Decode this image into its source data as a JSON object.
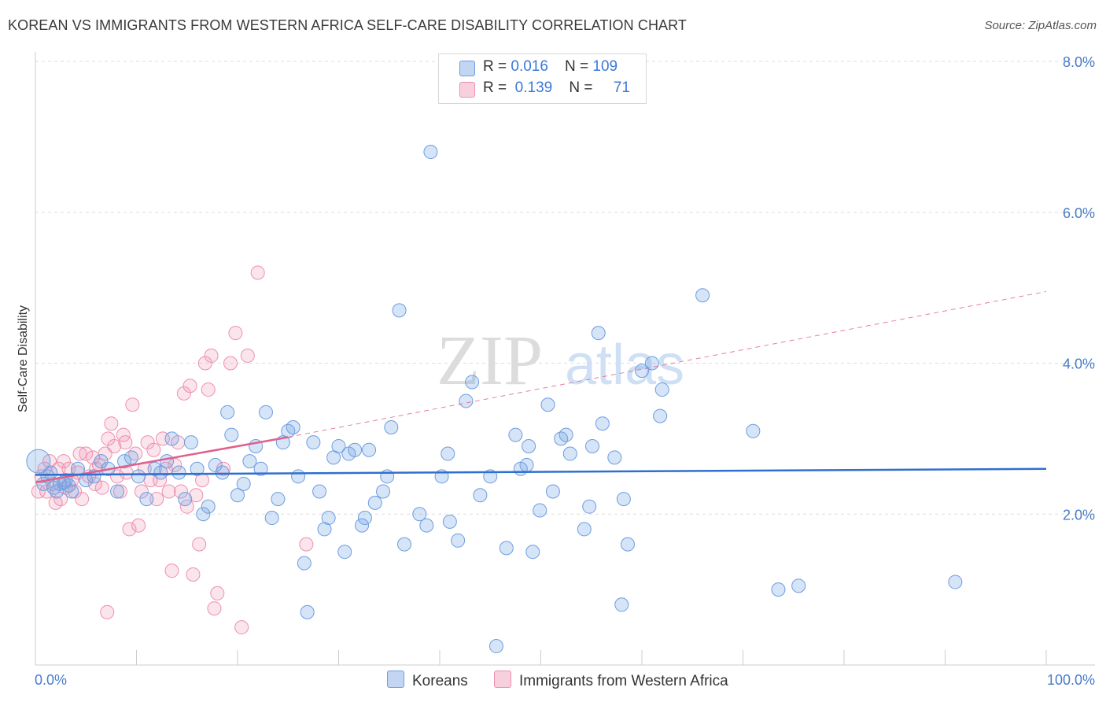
{
  "title": "KOREAN VS IMMIGRANTS FROM WESTERN AFRICA SELF-CARE DISABILITY CORRELATION CHART",
  "source": "Source: ZipAtlas.com",
  "watermark": {
    "zip": "ZIP",
    "atlas": "atlas"
  },
  "colors": {
    "koreans_fill": "rgba(120,165,230,0.30)",
    "koreans_stroke": "#6d9de0",
    "koreans_line": "#2f6fcf",
    "wa_fill": "rgba(240,150,180,0.25)",
    "wa_stroke": "#ee8fb0",
    "wa_line": "#e0608e",
    "tick_text": "#4a7cc7",
    "grid": "#dddddd"
  },
  "legend": {
    "rows": [
      {
        "r_label": "R = ",
        "r_value": "0.016",
        "n_label": "N = ",
        "n_value": "109"
      },
      {
        "r_label": "R = ",
        "r_value": "0.139",
        "n_label": "N = ",
        "n_value": "71"
      }
    ]
  },
  "chart_data": {
    "type": "scatter",
    "ylabel": "Self-Care Disability",
    "xlabel": "",
    "xlim": [
      0,
      100
    ],
    "ylim": [
      0,
      8.0
    ],
    "x_tick_labels": [
      "0.0%",
      "100.0%"
    ],
    "y_ticks": [
      2.0,
      4.0,
      6.0,
      8.0
    ],
    "y_tick_labels": [
      "2.0%",
      "4.0%",
      "6.0%",
      "8.0%"
    ],
    "grid": "horizontal dashed",
    "legend_position": "top-center",
    "series": [
      {
        "name": "Koreans",
        "r": 0.016,
        "n": 109,
        "trend": {
          "x": [
            0,
            100
          ],
          "y": [
            2.52,
            2.6
          ]
        },
        "points": [
          [
            0.3,
            2.7
          ],
          [
            0.8,
            2.4
          ],
          [
            1.2,
            2.5
          ],
          [
            1.8,
            2.35
          ],
          [
            2.4,
            2.4
          ],
          [
            3.0,
            2.45
          ],
          [
            3.6,
            2.3
          ],
          [
            4.2,
            2.6
          ],
          [
            1.5,
            2.55
          ],
          [
            2.1,
            2.3
          ],
          [
            5.0,
            2.45
          ],
          [
            5.8,
            2.5
          ],
          [
            6.5,
            2.7
          ],
          [
            7.2,
            2.6
          ],
          [
            8.1,
            2.3
          ],
          [
            8.8,
            2.7
          ],
          [
            9.5,
            2.75
          ],
          [
            10.2,
            2.5
          ],
          [
            11.0,
            2.2
          ],
          [
            11.8,
            2.6
          ],
          [
            12.4,
            2.55
          ],
          [
            13.0,
            2.7
          ],
          [
            13.5,
            3.0
          ],
          [
            14.2,
            2.55
          ],
          [
            14.8,
            2.2
          ],
          [
            15.4,
            2.95
          ],
          [
            16.0,
            2.6
          ],
          [
            16.6,
            2.0
          ],
          [
            17.1,
            2.1
          ],
          [
            17.8,
            2.65
          ],
          [
            18.5,
            2.55
          ],
          [
            19.0,
            3.35
          ],
          [
            19.4,
            3.05
          ],
          [
            20.0,
            2.25
          ],
          [
            20.6,
            2.4
          ],
          [
            21.2,
            2.7
          ],
          [
            21.8,
            2.9
          ],
          [
            22.3,
            2.6
          ],
          [
            22.8,
            3.35
          ],
          [
            23.4,
            1.95
          ],
          [
            24.0,
            2.2
          ],
          [
            24.5,
            2.95
          ],
          [
            25.0,
            3.1
          ],
          [
            25.5,
            3.15
          ],
          [
            26.0,
            2.5
          ],
          [
            26.6,
            1.35
          ],
          [
            26.9,
            0.7
          ],
          [
            27.5,
            2.95
          ],
          [
            28.1,
            2.3
          ],
          [
            28.6,
            1.8
          ],
          [
            29.0,
            1.95
          ],
          [
            29.5,
            2.75
          ],
          [
            30.0,
            2.9
          ],
          [
            30.6,
            1.5
          ],
          [
            31.0,
            2.8
          ],
          [
            31.6,
            2.85
          ],
          [
            32.3,
            1.85
          ],
          [
            32.6,
            1.95
          ],
          [
            33.0,
            2.85
          ],
          [
            33.6,
            2.15
          ],
          [
            34.4,
            2.3
          ],
          [
            34.8,
            2.5
          ],
          [
            35.2,
            3.15
          ],
          [
            36.0,
            4.7
          ],
          [
            36.5,
            1.6
          ],
          [
            38.0,
            2.0
          ],
          [
            38.7,
            1.85
          ],
          [
            39.1,
            6.8
          ],
          [
            40.2,
            2.5
          ],
          [
            40.8,
            2.8
          ],
          [
            41.0,
            1.9
          ],
          [
            41.8,
            1.65
          ],
          [
            42.6,
            3.5
          ],
          [
            43.2,
            3.75
          ],
          [
            44.0,
            2.25
          ],
          [
            45.0,
            2.5
          ],
          [
            45.6,
            0.25
          ],
          [
            46.6,
            1.55
          ],
          [
            47.5,
            3.05
          ],
          [
            48.0,
            2.6
          ],
          [
            48.6,
            2.65
          ],
          [
            48.8,
            2.9
          ],
          [
            49.2,
            1.5
          ],
          [
            49.9,
            2.05
          ],
          [
            50.7,
            3.45
          ],
          [
            51.2,
            2.3
          ],
          [
            52.0,
            3.0
          ],
          [
            52.5,
            3.05
          ],
          [
            52.9,
            2.8
          ],
          [
            54.3,
            1.8
          ],
          [
            54.8,
            2.1
          ],
          [
            55.1,
            2.9
          ],
          [
            55.7,
            4.4
          ],
          [
            56.1,
            3.2
          ],
          [
            57.3,
            2.75
          ],
          [
            58.0,
            0.8
          ],
          [
            58.2,
            2.2
          ],
          [
            58.6,
            1.6
          ],
          [
            60.0,
            3.9
          ],
          [
            61.0,
            4.0
          ],
          [
            61.8,
            3.3
          ],
          [
            62.0,
            3.65
          ],
          [
            66.0,
            4.9
          ],
          [
            71.0,
            3.1
          ],
          [
            73.5,
            1.0
          ],
          [
            75.5,
            1.05
          ],
          [
            91.0,
            1.1
          ],
          [
            2.8,
            2.42
          ],
          [
            3.3,
            2.38
          ]
        ],
        "sizes": {
          "0.3,2.7": "large"
        }
      },
      {
        "name": "Immigrants from Western Africa",
        "r": 0.139,
        "n": 71,
        "trend": {
          "x": [
            0,
            25
          ],
          "y": [
            2.42,
            3.02
          ]
        },
        "trend_extension": {
          "x": [
            25,
            100
          ],
          "y": [
            3.02,
            4.95
          ]
        },
        "points": [
          [
            0.3,
            2.3
          ],
          [
            0.6,
            2.5
          ],
          [
            0.9,
            2.6
          ],
          [
            1.1,
            2.3
          ],
          [
            1.4,
            2.7
          ],
          [
            1.7,
            2.4
          ],
          [
            2.0,
            2.15
          ],
          [
            2.3,
            2.6
          ],
          [
            2.5,
            2.2
          ],
          [
            2.8,
            2.7
          ],
          [
            3.0,
            2.35
          ],
          [
            3.3,
            2.6
          ],
          [
            3.6,
            2.45
          ],
          [
            3.9,
            2.3
          ],
          [
            4.2,
            2.55
          ],
          [
            4.6,
            2.2
          ],
          [
            5.0,
            2.8
          ],
          [
            5.3,
            2.5
          ],
          [
            5.7,
            2.75
          ],
          [
            6.0,
            2.6
          ],
          [
            6.3,
            2.65
          ],
          [
            6.6,
            2.35
          ],
          [
            6.9,
            2.8
          ],
          [
            7.2,
            3.0
          ],
          [
            7.5,
            3.2
          ],
          [
            7.8,
            2.9
          ],
          [
            8.1,
            2.5
          ],
          [
            8.4,
            2.3
          ],
          [
            8.7,
            3.05
          ],
          [
            9.0,
            2.55
          ],
          [
            9.3,
            1.8
          ],
          [
            9.6,
            3.45
          ],
          [
            9.9,
            2.8
          ],
          [
            10.2,
            1.85
          ],
          [
            10.5,
            2.3
          ],
          [
            10.8,
            2.6
          ],
          [
            11.1,
            2.95
          ],
          [
            11.4,
            2.45
          ],
          [
            11.7,
            2.85
          ],
          [
            12.0,
            2.2
          ],
          [
            12.3,
            2.45
          ],
          [
            12.6,
            3.0
          ],
          [
            12.9,
            2.6
          ],
          [
            13.2,
            2.3
          ],
          [
            13.5,
            1.25
          ],
          [
            13.8,
            2.65
          ],
          [
            14.1,
            2.95
          ],
          [
            14.4,
            2.3
          ],
          [
            14.7,
            3.6
          ],
          [
            15.0,
            2.1
          ],
          [
            15.3,
            3.7
          ],
          [
            15.6,
            1.2
          ],
          [
            15.9,
            2.25
          ],
          [
            16.2,
            1.6
          ],
          [
            16.5,
            2.45
          ],
          [
            16.8,
            4.0
          ],
          [
            17.1,
            3.65
          ],
          [
            17.4,
            4.1
          ],
          [
            17.7,
            0.75
          ],
          [
            18.0,
            0.95
          ],
          [
            18.6,
            2.6
          ],
          [
            19.3,
            4.0
          ],
          [
            19.8,
            4.4
          ],
          [
            20.4,
            0.5
          ],
          [
            21.0,
            4.1
          ],
          [
            22.0,
            5.2
          ],
          [
            26.8,
            1.6
          ],
          [
            7.1,
            0.7
          ],
          [
            5.9,
            2.4
          ],
          [
            4.4,
            2.8
          ],
          [
            8.9,
            2.95
          ]
        ]
      }
    ]
  },
  "bottom_legend": [
    "Koreans",
    "Immigrants from Western Africa"
  ]
}
